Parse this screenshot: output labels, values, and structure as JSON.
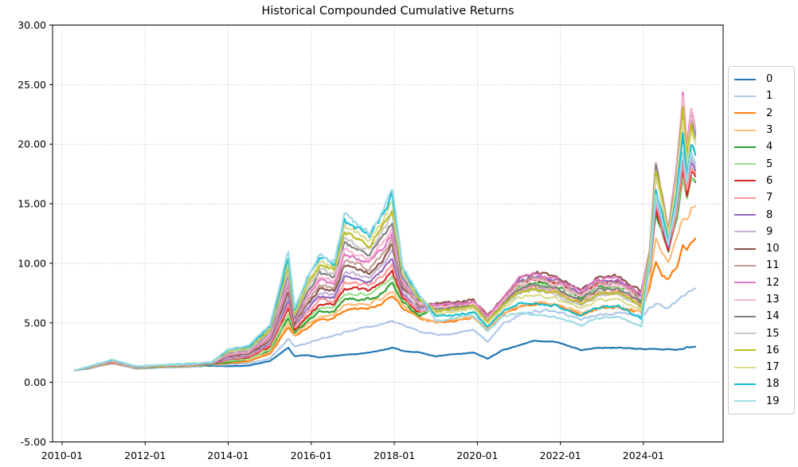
{
  "title": "Historical Compounded Cumulative Returns",
  "chart_data": {
    "type": "line",
    "title": "Historical Compounded Cumulative Returns",
    "xlabel": "",
    "ylabel": "",
    "grid": true,
    "legend_position": "right",
    "x_unit": "decimal_year",
    "xlim": [
      2009.77,
      2025.92
    ],
    "ylim": [
      -5,
      30
    ],
    "x_tick_positions": [
      2010,
      2012,
      2014,
      2016,
      2018,
      2020,
      2022,
      2024
    ],
    "x_tick_labels": [
      "2010-01",
      "2012-01",
      "2014-01",
      "2016-01",
      "2018-01",
      "2020-01",
      "2022-01",
      "2024-01"
    ],
    "y_tick_positions": [
      -5,
      0,
      5,
      10,
      15,
      20,
      25,
      30
    ],
    "y_tick_labels": [
      "-5.00",
      "0.00",
      "5.00",
      "10.00",
      "15.00",
      "20.00",
      "25.00",
      "30.00"
    ],
    "x": [
      2010.3,
      2010.7,
      2011.2,
      2011.8,
      2012.3,
      2013.0,
      2013.6,
      2014.0,
      2014.5,
      2015.0,
      2015.45,
      2015.6,
      2015.9,
      2016.2,
      2016.55,
      2016.8,
      2017.1,
      2017.4,
      2017.7,
      2017.95,
      2018.2,
      2018.6,
      2019.0,
      2019.5,
      2019.9,
      2020.25,
      2020.6,
      2021.0,
      2021.4,
      2021.9,
      2022.5,
      2022.9,
      2023.4,
      2023.95,
      2024.15,
      2024.3,
      2024.45,
      2024.6,
      2024.8,
      2024.95,
      2025.05,
      2025.15,
      2025.25
    ],
    "series": [
      {
        "name": "0",
        "color": "#1f77b4",
        "values": [
          1.0,
          1.2,
          1.6,
          1.15,
          1.25,
          1.3,
          1.4,
          1.35,
          1.4,
          1.8,
          2.9,
          2.2,
          2.3,
          2.1,
          2.2,
          2.3,
          2.4,
          2.5,
          2.7,
          2.9,
          2.65,
          2.5,
          2.2,
          2.4,
          2.5,
          2.0,
          2.7,
          3.1,
          3.5,
          3.4,
          2.7,
          2.9,
          2.9,
          2.8,
          2.8,
          2.8,
          2.75,
          2.8,
          2.75,
          2.8,
          3.0,
          2.95,
          3.0
        ]
      },
      {
        "name": "1",
        "color": "#aec7e8",
        "values": [
          1.0,
          1.2,
          1.6,
          1.15,
          1.25,
          1.3,
          1.45,
          1.5,
          1.6,
          2.0,
          3.6,
          3.0,
          3.3,
          3.6,
          3.9,
          4.2,
          4.5,
          4.7,
          4.9,
          5.2,
          4.9,
          4.3,
          4.0,
          4.1,
          4.4,
          3.4,
          4.9,
          5.6,
          6.0,
          6.0,
          5.3,
          5.7,
          5.8,
          5.6,
          6.2,
          6.6,
          6.4,
          6.3,
          6.8,
          7.2,
          7.4,
          7.7,
          7.9
        ]
      },
      {
        "name": "2",
        "color": "#ff7f0e",
        "values": [
          1.0,
          1.25,
          1.65,
          1.2,
          1.3,
          1.35,
          1.5,
          1.6,
          1.8,
          2.4,
          4.6,
          3.9,
          4.6,
          5.2,
          5.4,
          6.0,
          6.2,
          6.2,
          6.6,
          7.2,
          6.3,
          5.4,
          5.0,
          5.2,
          5.4,
          4.4,
          5.6,
          6.3,
          6.6,
          6.5,
          5.7,
          6.2,
          6.3,
          5.9,
          8.0,
          10.3,
          9.0,
          8.7,
          9.8,
          11.5,
          11.0,
          11.8,
          12.1
        ]
      },
      {
        "name": "3",
        "color": "#ffbb78",
        "values": [
          1.0,
          1.3,
          1.7,
          1.2,
          1.3,
          1.4,
          1.5,
          1.7,
          1.9,
          2.5,
          5.0,
          4.0,
          4.9,
          5.5,
          5.7,
          6.5,
          6.6,
          6.6,
          7.1,
          7.7,
          6.5,
          5.5,
          5.1,
          5.3,
          5.5,
          4.5,
          5.7,
          6.4,
          6.7,
          6.6,
          5.8,
          6.3,
          6.4,
          6.0,
          8.5,
          12.3,
          10.8,
          10.2,
          12.0,
          13.8,
          13.5,
          14.5,
          14.8
        ]
      },
      {
        "name": "4",
        "color": "#2ca02c",
        "values": [
          1.0,
          1.3,
          1.7,
          1.2,
          1.3,
          1.4,
          1.5,
          1.7,
          2.0,
          2.7,
          5.4,
          4.2,
          5.1,
          5.9,
          6.0,
          6.9,
          7.0,
          7.0,
          7.5,
          8.3,
          6.7,
          5.6,
          6.3,
          6.4,
          6.6,
          5.3,
          6.6,
          8.1,
          8.4,
          8.1,
          7.1,
          8.0,
          8.1,
          6.9,
          9.3,
          14.2,
          12.4,
          11.0,
          13.8,
          17.0,
          15.3,
          17.1,
          16.8
        ]
      },
      {
        "name": "5",
        "color": "#98df8a",
        "values": [
          1.0,
          1.3,
          1.7,
          1.2,
          1.3,
          1.4,
          1.55,
          1.8,
          2.0,
          2.8,
          5.7,
          4.3,
          5.3,
          6.2,
          6.3,
          7.4,
          7.5,
          7.3,
          8.0,
          8.8,
          6.9,
          5.8,
          6.2,
          6.3,
          6.5,
          5.2,
          6.6,
          7.9,
          8.2,
          7.9,
          6.9,
          7.8,
          7.9,
          6.7,
          9.4,
          14.4,
          12.6,
          11.1,
          14.0,
          17.4,
          15.5,
          17.4,
          17.0
        ]
      },
      {
        "name": "6",
        "color": "#d62728",
        "values": [
          1.0,
          1.3,
          1.7,
          1.25,
          1.35,
          1.45,
          1.55,
          1.9,
          2.1,
          3.0,
          6.1,
          4.4,
          5.6,
          6.5,
          6.5,
          7.9,
          7.9,
          7.7,
          8.4,
          9.3,
          7.1,
          5.9,
          6.4,
          6.5,
          6.7,
          5.4,
          6.8,
          8.4,
          8.8,
          8.4,
          7.4,
          8.3,
          8.4,
          7.2,
          9.5,
          14.7,
          12.8,
          11.2,
          14.3,
          17.8,
          15.8,
          17.7,
          17.3
        ]
      },
      {
        "name": "7",
        "color": "#ff9896",
        "values": [
          1.0,
          1.3,
          1.7,
          1.25,
          1.35,
          1.45,
          1.56,
          1.95,
          2.2,
          3.1,
          6.5,
          4.6,
          5.8,
          6.9,
          6.8,
          8.4,
          8.3,
          8.1,
          8.9,
          9.9,
          7.3,
          6.0,
          6.1,
          6.3,
          6.5,
          5.1,
          6.5,
          7.8,
          8.0,
          7.7,
          6.8,
          7.6,
          7.7,
          6.6,
          9.6,
          15.0,
          13.0,
          11.3,
          14.5,
          18.3,
          16.0,
          18.1,
          17.6
        ]
      },
      {
        "name": "8",
        "color": "#9467bd",
        "values": [
          1.0,
          1.3,
          1.74,
          1.3,
          1.4,
          1.5,
          1.57,
          2.0,
          2.3,
          3.25,
          6.9,
          4.7,
          6.1,
          7.2,
          7.1,
          8.8,
          8.7,
          8.5,
          9.3,
          10.4,
          7.5,
          6.1,
          6.5,
          6.6,
          6.8,
          5.5,
          6.9,
          8.5,
          8.9,
          8.6,
          7.5,
          8.5,
          8.6,
          7.3,
          9.7,
          15.2,
          13.2,
          11.4,
          14.8,
          18.7,
          16.3,
          18.4,
          17.8
        ]
      },
      {
        "name": "9",
        "color": "#c5b0d5",
        "values": [
          1.0,
          1.31,
          1.75,
          1.3,
          1.4,
          1.5,
          1.58,
          2.1,
          2.34,
          3.4,
          7.2,
          4.85,
          6.3,
          7.5,
          7.4,
          9.3,
          9.1,
          8.8,
          9.8,
          10.95,
          7.7,
          6.2,
          6.0,
          6.2,
          6.4,
          5.1,
          6.4,
          7.6,
          7.9,
          7.5,
          6.6,
          7.4,
          7.5,
          6.4,
          9.75,
          15.45,
          13.4,
          11.5,
          15.0,
          19.1,
          16.5,
          18.75,
          18.1
        ]
      },
      {
        "name": "10",
        "color": "#8c564b",
        "values": [
          1.0,
          1.32,
          1.77,
          1.3,
          1.4,
          1.5,
          1.59,
          2.16,
          2.4,
          3.5,
          7.6,
          5.0,
          6.6,
          7.8,
          7.7,
          9.8,
          9.5,
          9.2,
          10.2,
          11.5,
          7.95,
          6.3,
          6.6,
          6.7,
          6.9,
          5.6,
          7.0,
          8.8,
          9.3,
          8.9,
          7.8,
          8.8,
          8.9,
          7.6,
          10.9,
          18.3,
          15.7,
          12.7,
          17.7,
          23.9,
          19.2,
          22.6,
          21.1
        ]
      },
      {
        "name": "11",
        "color": "#c49c94",
        "values": [
          1.0,
          1.33,
          1.78,
          1.3,
          1.4,
          1.5,
          1.61,
          2.24,
          2.5,
          3.7,
          8.0,
          5.1,
          6.8,
          8.2,
          7.9,
          10.2,
          10.0,
          9.6,
          10.7,
          12.0,
          8.15,
          6.5,
          6.4,
          6.5,
          6.7,
          5.4,
          6.8,
          8.4,
          8.8,
          8.4,
          7.4,
          8.3,
          8.4,
          7.2,
          10.8,
          18.2,
          15.6,
          12.6,
          17.6,
          23.7,
          19.1,
          22.4,
          20.9
        ]
      },
      {
        "name": "12",
        "color": "#e377c2",
        "values": [
          1.0,
          1.34,
          1.8,
          1.3,
          1.4,
          1.5,
          1.62,
          2.3,
          2.56,
          3.8,
          8.4,
          5.25,
          7.1,
          8.5,
          8.2,
          10.7,
          10.4,
          10.0,
          11.1,
          12.55,
          8.36,
          6.6,
          6.5,
          6.6,
          6.8,
          5.5,
          6.9,
          8.65,
          9.1,
          8.7,
          7.65,
          8.6,
          8.7,
          7.45,
          11.0,
          18.6,
          16.0,
          12.8,
          18.0,
          24.4,
          19.5,
          23.0,
          21.4
        ]
      },
      {
        "name": "13",
        "color": "#f7b6d2",
        "values": [
          1.0,
          1.35,
          1.81,
          1.3,
          1.4,
          1.5,
          1.63,
          2.38,
          2.64,
          3.95,
          8.7,
          5.4,
          7.3,
          8.8,
          8.5,
          11.2,
          10.8,
          10.3,
          11.6,
          13.1,
          8.56,
          6.7,
          6.3,
          6.4,
          6.6,
          5.3,
          6.7,
          8.2,
          8.6,
          8.2,
          7.2,
          8.1,
          8.2,
          7.0,
          10.9,
          18.4,
          15.8,
          12.7,
          17.8,
          24.1,
          19.3,
          22.75,
          21.2
        ]
      },
      {
        "name": "14",
        "color": "#7f7f7f",
        "values": [
          1.0,
          1.36,
          1.83,
          1.3,
          1.4,
          1.5,
          1.64,
          2.45,
          2.7,
          4.1,
          9.1,
          5.5,
          7.6,
          9.15,
          8.8,
          11.65,
          11.2,
          10.7,
          12.0,
          13.6,
          8.77,
          6.8,
          6.2,
          6.3,
          6.5,
          5.2,
          6.55,
          7.9,
          8.2,
          7.9,
          6.9,
          7.8,
          7.9,
          6.7,
          10.75,
          18.0,
          15.5,
          12.5,
          17.4,
          23.3,
          18.9,
          22.15,
          20.7
        ]
      },
      {
        "name": "15",
        "color": "#c7c7c7",
        "values": [
          1.0,
          1.36,
          1.84,
          1.31,
          1.41,
          1.51,
          1.65,
          2.52,
          2.8,
          4.24,
          9.5,
          5.66,
          7.8,
          9.5,
          9.1,
          12.1,
          11.6,
          11.1,
          12.5,
          14.16,
          8.98,
          6.93,
          6.0,
          6.1,
          6.3,
          5.0,
          6.3,
          7.45,
          7.7,
          7.4,
          6.45,
          7.3,
          7.4,
          6.3,
          10.6,
          17.7,
          15.2,
          12.4,
          17.1,
          22.8,
          18.6,
          21.7,
          20.4
        ]
      },
      {
        "name": "16",
        "color": "#bcbd22",
        "values": [
          1.0,
          1.37,
          1.86,
          1.32,
          1.42,
          1.52,
          1.66,
          2.59,
          2.87,
          4.38,
          9.9,
          5.8,
          8.1,
          9.8,
          9.4,
          12.6,
          12.1,
          11.5,
          12.9,
          14.7,
          9.2,
          7.1,
          6.0,
          6.2,
          6.4,
          5.1,
          6.4,
          7.6,
          7.9,
          7.5,
          6.6,
          7.4,
          7.5,
          6.4,
          10.7,
          17.8,
          15.3,
          12.5,
          17.2,
          23.0,
          18.7,
          21.9,
          20.5
        ]
      },
      {
        "name": "17",
        "color": "#dbdb8d",
        "values": [
          1.0,
          1.38,
          1.87,
          1.33,
          1.43,
          1.53,
          1.68,
          2.66,
          2.95,
          4.52,
          10.3,
          5.9,
          8.3,
          10.1,
          9.6,
          13.1,
          12.5,
          11.9,
          13.4,
          15.2,
          9.4,
          7.2,
          5.8,
          6.0,
          6.2,
          4.9,
          6.2,
          7.15,
          7.3,
          7.0,
          6.15,
          6.9,
          7.0,
          6.0,
          10.5,
          17.3,
          15.0,
          12.3,
          16.8,
          22.3,
          18.3,
          21.3,
          20.1
        ]
      },
      {
        "name": "18",
        "color": "#17becf",
        "values": [
          1.0,
          1.39,
          1.89,
          1.34,
          1.44,
          1.54,
          1.69,
          2.73,
          3.02,
          4.66,
          10.6,
          6.1,
          8.6,
          10.5,
          9.9,
          13.5,
          12.9,
          12.2,
          13.9,
          15.8,
          9.6,
          7.3,
          5.6,
          5.7,
          5.9,
          4.6,
          5.9,
          6.6,
          6.6,
          6.4,
          5.6,
          6.3,
          6.4,
          5.4,
          10.1,
          16.4,
          14.2,
          11.9,
          15.9,
          20.7,
          17.4,
          20.0,
          19.1
        ]
      },
      {
        "name": "19",
        "color": "#9edae5",
        "values": [
          1.0,
          1.4,
          1.9,
          1.35,
          1.45,
          1.5,
          1.7,
          2.8,
          3.1,
          4.8,
          11.0,
          6.2,
          8.8,
          10.8,
          10.2,
          14.0,
          13.3,
          12.6,
          14.3,
          16.3,
          9.8,
          7.4,
          5.2,
          5.4,
          5.6,
          4.3,
          5.5,
          5.8,
          5.7,
          5.5,
          4.8,
          5.4,
          5.5,
          4.7,
          9.9,
          15.8,
          13.7,
          11.6,
          15.3,
          19.6,
          16.8,
          19.2,
          18.4
        ]
      }
    ]
  },
  "style_colors": {
    "grid": "#b0b0b0",
    "spine": "#000000",
    "text": "#000000",
    "legend_border": "#cccccc",
    "background": "#ffffff"
  }
}
